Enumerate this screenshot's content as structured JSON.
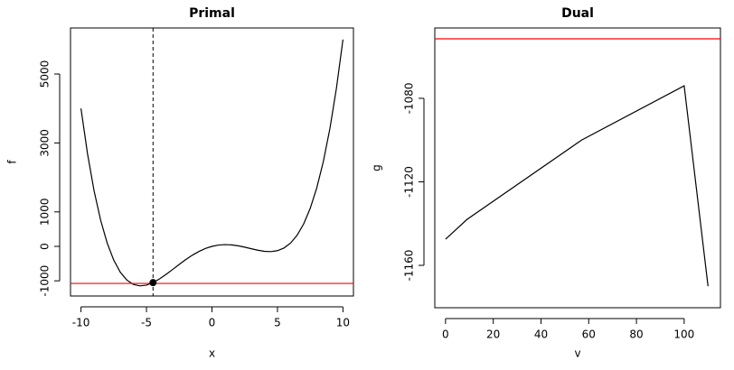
{
  "chart_data": [
    {
      "type": "line",
      "title": "Primal",
      "x_label": "x",
      "y_label": "f",
      "x": [
        -10,
        -9.5,
        -9,
        -8.5,
        -8,
        -7.5,
        -7,
        -6.5,
        -6,
        -5.5,
        -5,
        -4.5,
        -4,
        -3.5,
        -3,
        -2.5,
        -2,
        -1.5,
        -1,
        -0.5,
        0,
        0.5,
        1,
        1.5,
        2,
        2.5,
        3,
        3.5,
        4,
        4.5,
        5,
        5.5,
        6,
        6.5,
        7,
        7.5,
        8,
        8.5,
        9,
        9.5,
        10
      ],
      "series": [
        {
          "color": "#000000",
          "values": [
            4000,
            2683,
            1611,
            758,
            96,
            -398,
            -749,
            -977,
            -1104,
            -1147,
            -1125,
            -1052,
            -944,
            -812,
            -669,
            -523,
            -384,
            -257,
            -149,
            -62,
            0,
            38,
            51,
            43,
            16,
            -23,
            -69,
            -112,
            -144,
            -152,
            -125,
            -47,
            96,
            323,
            651,
            1102,
            1696,
            2458,
            3411,
            4583,
            6000
          ]
        }
      ],
      "hlines": [
        {
          "value": -1075,
          "color": "#ff0000"
        }
      ],
      "vlines": [
        {
          "value": -4.5,
          "color": "#000000",
          "dashed": true
        }
      ],
      "points": [
        {
          "x": -4.5,
          "y": -1052,
          "color": "#000000"
        }
      ],
      "xlim": [
        -10.8,
        10.8
      ],
      "xticks": [
        -10,
        -5,
        0,
        5,
        10
      ],
      "ylim": [
        -1440,
        6335
      ],
      "yticks": [
        -1000,
        0,
        1000,
        3000,
        5000
      ]
    },
    {
      "type": "line",
      "title": "Dual",
      "x_label": "v",
      "y_label": "g",
      "x": [
        0,
        9,
        57,
        100,
        110
      ],
      "series": [
        {
          "color": "#000000",
          "values": [
            -1147.5,
            -1138,
            -1100,
            -1074,
            -1170
          ]
        }
      ],
      "hlines": [
        {
          "value": -1051.5,
          "color": "#ff0000"
        }
      ],
      "xlim": [
        -4.5,
        115.2
      ],
      "xticks": [
        0,
        20,
        40,
        60,
        80,
        100
      ],
      "ylim": [
        -1180.3,
        -1046.3
      ],
      "yticks": [
        -1160,
        -1120,
        -1080
      ]
    }
  ]
}
